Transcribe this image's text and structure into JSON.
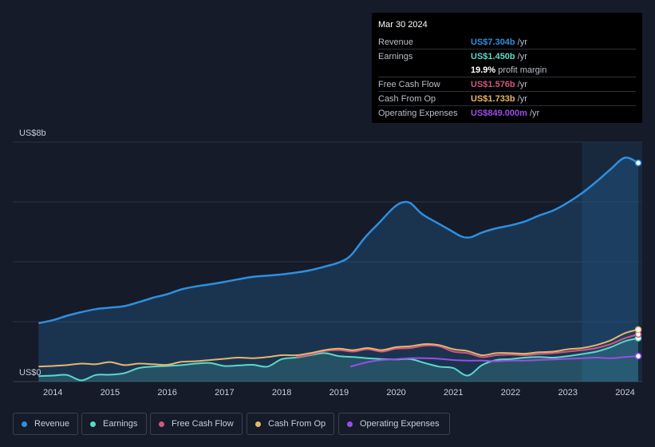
{
  "chart_data": {
    "type": "area",
    "title": "",
    "y_axis": {
      "top_label": "US$8b",
      "bottom_label": "US$0",
      "ylim": [
        0,
        8
      ],
      "unit": "US$b"
    },
    "x_range": [
      2013.3,
      2024.3
    ],
    "xticks": [
      {
        "value": 2014,
        "label": "2014"
      },
      {
        "value": 2015,
        "label": "2015"
      },
      {
        "value": 2016,
        "label": "2016"
      },
      {
        "value": 2017,
        "label": "2017"
      },
      {
        "value": 2018,
        "label": "2018"
      },
      {
        "value": 2019,
        "label": "2019"
      },
      {
        "value": 2020,
        "label": "2020"
      },
      {
        "value": 2021,
        "label": "2021"
      },
      {
        "value": 2022,
        "label": "2022"
      },
      {
        "value": 2023,
        "label": "2023"
      },
      {
        "value": 2024,
        "label": "2024"
      }
    ],
    "highlight_from": 2023.25,
    "series": [
      {
        "name": "Revenue",
        "color": "#2e8fe0",
        "fill": true,
        "points": [
          [
            2013.75,
            1.95
          ],
          [
            2014.0,
            2.05
          ],
          [
            2014.25,
            2.2
          ],
          [
            2014.5,
            2.32
          ],
          [
            2014.75,
            2.42
          ],
          [
            2015.0,
            2.47
          ],
          [
            2015.25,
            2.52
          ],
          [
            2015.5,
            2.65
          ],
          [
            2015.75,
            2.8
          ],
          [
            2016.0,
            2.92
          ],
          [
            2016.25,
            3.08
          ],
          [
            2016.5,
            3.18
          ],
          [
            2016.75,
            3.25
          ],
          [
            2017.0,
            3.33
          ],
          [
            2017.25,
            3.42
          ],
          [
            2017.5,
            3.5
          ],
          [
            2017.75,
            3.54
          ],
          [
            2018.0,
            3.58
          ],
          [
            2018.25,
            3.64
          ],
          [
            2018.5,
            3.72
          ],
          [
            2018.75,
            3.84
          ],
          [
            2019.0,
            3.98
          ],
          [
            2019.2,
            4.2
          ],
          [
            2019.45,
            4.8
          ],
          [
            2019.7,
            5.3
          ],
          [
            2019.95,
            5.8
          ],
          [
            2020.1,
            5.98
          ],
          [
            2020.25,
            5.96
          ],
          [
            2020.45,
            5.6
          ],
          [
            2020.7,
            5.32
          ],
          [
            2020.95,
            5.05
          ],
          [
            2021.15,
            4.84
          ],
          [
            2021.3,
            4.82
          ],
          [
            2021.5,
            4.98
          ],
          [
            2021.75,
            5.12
          ],
          [
            2022.0,
            5.22
          ],
          [
            2022.25,
            5.35
          ],
          [
            2022.5,
            5.55
          ],
          [
            2022.75,
            5.72
          ],
          [
            2023.0,
            5.98
          ],
          [
            2023.25,
            6.3
          ],
          [
            2023.5,
            6.68
          ],
          [
            2023.75,
            7.1
          ],
          [
            2024.0,
            7.48
          ],
          [
            2024.23,
            7.304
          ]
        ]
      },
      {
        "name": "Earnings",
        "color": "#5cd8c8",
        "fill": true,
        "points": [
          [
            2013.75,
            0.18
          ],
          [
            2014.0,
            0.2
          ],
          [
            2014.25,
            0.22
          ],
          [
            2014.5,
            0.04
          ],
          [
            2014.75,
            0.22
          ],
          [
            2015.0,
            0.23
          ],
          [
            2015.25,
            0.28
          ],
          [
            2015.5,
            0.45
          ],
          [
            2015.75,
            0.5
          ],
          [
            2016.0,
            0.52
          ],
          [
            2016.25,
            0.55
          ],
          [
            2016.5,
            0.6
          ],
          [
            2016.75,
            0.62
          ],
          [
            2017.0,
            0.52
          ],
          [
            2017.25,
            0.54
          ],
          [
            2017.5,
            0.56
          ],
          [
            2017.75,
            0.5
          ],
          [
            2018.0,
            0.75
          ],
          [
            2018.25,
            0.8
          ],
          [
            2018.5,
            0.88
          ],
          [
            2018.75,
            0.95
          ],
          [
            2019.0,
            0.85
          ],
          [
            2019.25,
            0.82
          ],
          [
            2019.5,
            0.78
          ],
          [
            2019.75,
            0.75
          ],
          [
            2020.0,
            0.74
          ],
          [
            2020.25,
            0.75
          ],
          [
            2020.5,
            0.62
          ],
          [
            2020.75,
            0.5
          ],
          [
            2021.0,
            0.45
          ],
          [
            2021.25,
            0.2
          ],
          [
            2021.5,
            0.55
          ],
          [
            2021.75,
            0.72
          ],
          [
            2022.0,
            0.75
          ],
          [
            2022.25,
            0.8
          ],
          [
            2022.5,
            0.82
          ],
          [
            2022.75,
            0.8
          ],
          [
            2023.0,
            0.85
          ],
          [
            2023.25,
            0.92
          ],
          [
            2023.5,
            1.0
          ],
          [
            2023.75,
            1.15
          ],
          [
            2024.0,
            1.35
          ],
          [
            2024.23,
            1.45
          ]
        ]
      },
      {
        "name": "Free Cash Flow",
        "color": "#d0587e",
        "fill": false,
        "points": [
          [
            2018.25,
            0.82
          ],
          [
            2018.5,
            0.9
          ],
          [
            2018.75,
            1.02
          ],
          [
            2019.0,
            1.05
          ],
          [
            2019.25,
            1.0
          ],
          [
            2019.5,
            1.08
          ],
          [
            2019.75,
            1.0
          ],
          [
            2020.0,
            1.1
          ],
          [
            2020.25,
            1.12
          ],
          [
            2020.5,
            1.2
          ],
          [
            2020.75,
            1.18
          ],
          [
            2021.0,
            1.0
          ],
          [
            2021.25,
            0.95
          ],
          [
            2021.5,
            0.82
          ],
          [
            2021.75,
            0.88
          ],
          [
            2022.0,
            0.9
          ],
          [
            2022.25,
            0.88
          ],
          [
            2022.5,
            0.92
          ],
          [
            2022.75,
            0.95
          ],
          [
            2023.0,
            1.0
          ],
          [
            2023.25,
            1.05
          ],
          [
            2023.5,
            1.12
          ],
          [
            2023.75,
            1.25
          ],
          [
            2024.0,
            1.45
          ],
          [
            2024.23,
            1.576
          ]
        ]
      },
      {
        "name": "Cash From Op",
        "color": "#e8b56b",
        "fill": false,
        "points": [
          [
            2013.75,
            0.5
          ],
          [
            2014.0,
            0.52
          ],
          [
            2014.25,
            0.55
          ],
          [
            2014.5,
            0.6
          ],
          [
            2014.75,
            0.58
          ],
          [
            2015.0,
            0.65
          ],
          [
            2015.25,
            0.55
          ],
          [
            2015.5,
            0.6
          ],
          [
            2015.75,
            0.58
          ],
          [
            2016.0,
            0.56
          ],
          [
            2016.25,
            0.66
          ],
          [
            2016.5,
            0.68
          ],
          [
            2016.75,
            0.72
          ],
          [
            2017.0,
            0.76
          ],
          [
            2017.25,
            0.8
          ],
          [
            2017.5,
            0.78
          ],
          [
            2017.75,
            0.82
          ],
          [
            2018.0,
            0.88
          ],
          [
            2018.25,
            0.88
          ],
          [
            2018.5,
            0.95
          ],
          [
            2018.75,
            1.05
          ],
          [
            2019.0,
            1.1
          ],
          [
            2019.25,
            1.05
          ],
          [
            2019.5,
            1.12
          ],
          [
            2019.75,
            1.05
          ],
          [
            2020.0,
            1.15
          ],
          [
            2020.25,
            1.18
          ],
          [
            2020.5,
            1.25
          ],
          [
            2020.75,
            1.22
          ],
          [
            2021.0,
            1.08
          ],
          [
            2021.25,
            1.02
          ],
          [
            2021.5,
            0.88
          ],
          [
            2021.75,
            0.95
          ],
          [
            2022.0,
            0.95
          ],
          [
            2022.25,
            0.93
          ],
          [
            2022.5,
            0.98
          ],
          [
            2022.75,
            1.0
          ],
          [
            2023.0,
            1.08
          ],
          [
            2023.25,
            1.12
          ],
          [
            2023.5,
            1.22
          ],
          [
            2023.75,
            1.38
          ],
          [
            2024.0,
            1.62
          ],
          [
            2024.23,
            1.733
          ]
        ]
      },
      {
        "name": "Operating Expenses",
        "color": "#9a4de6",
        "fill": false,
        "points": [
          [
            2019.2,
            0.5
          ],
          [
            2019.5,
            0.65
          ],
          [
            2019.75,
            0.72
          ],
          [
            2020.0,
            0.75
          ],
          [
            2020.25,
            0.78
          ],
          [
            2020.5,
            0.78
          ],
          [
            2020.75,
            0.76
          ],
          [
            2021.0,
            0.72
          ],
          [
            2021.25,
            0.7
          ],
          [
            2021.5,
            0.7
          ],
          [
            2021.75,
            0.68
          ],
          [
            2022.0,
            0.7
          ],
          [
            2022.25,
            0.7
          ],
          [
            2022.5,
            0.72
          ],
          [
            2022.75,
            0.74
          ],
          [
            2023.0,
            0.76
          ],
          [
            2023.25,
            0.78
          ],
          [
            2023.5,
            0.8
          ],
          [
            2023.75,
            0.78
          ],
          [
            2024.0,
            0.82
          ],
          [
            2024.23,
            0.849
          ]
        ]
      }
    ]
  },
  "tooltip": {
    "date": "Mar 30 2024",
    "rows": [
      {
        "label": "Revenue",
        "value": "US$7.304b",
        "unit": "/yr",
        "color": "#2e8fe0"
      },
      {
        "label": "Earnings",
        "value": "US$1.450b",
        "unit": "/yr",
        "color": "#5cd8c8"
      },
      {
        "label": "",
        "value": "19.9%",
        "unit": "profit margin",
        "color": "#ffffff"
      },
      {
        "label": "Free Cash Flow",
        "value": "US$1.576b",
        "unit": "/yr",
        "color": "#d0587e"
      },
      {
        "label": "Cash From Op",
        "value": "US$1.733b",
        "unit": "/yr",
        "color": "#e8b56b"
      },
      {
        "label": "Operating Expenses",
        "value": "US$849.000m",
        "unit": "/yr",
        "color": "#9a4de6"
      }
    ]
  },
  "legend": [
    {
      "label": "Revenue",
      "color": "#2e8fe0"
    },
    {
      "label": "Earnings",
      "color": "#5cd8c8"
    },
    {
      "label": "Free Cash Flow",
      "color": "#d0587e"
    },
    {
      "label": "Cash From Op",
      "color": "#e8b56b"
    },
    {
      "label": "Operating Expenses",
      "color": "#9a4de6"
    }
  ]
}
